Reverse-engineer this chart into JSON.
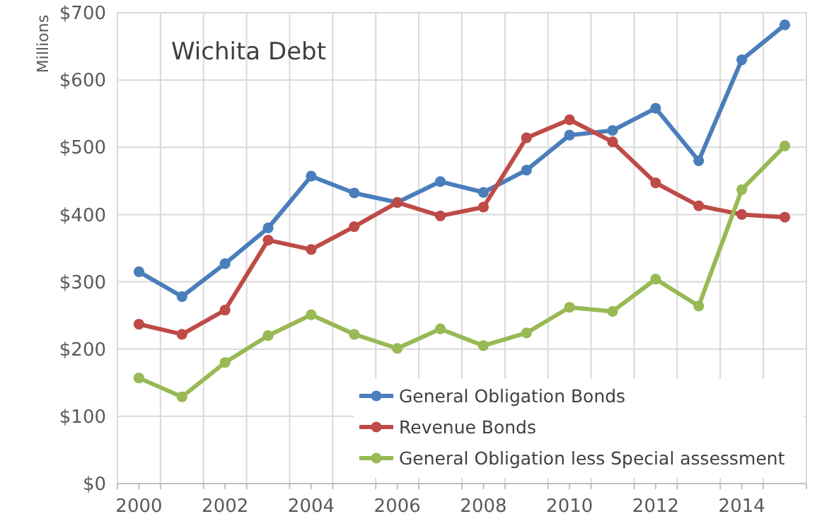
{
  "chart_data": {
    "type": "line",
    "title": "Wichita Debt",
    "ylabel": "Millions",
    "x": [
      2000,
      2001,
      2002,
      2003,
      2004,
      2005,
      2006,
      2007,
      2008,
      2009,
      2010,
      2011,
      2012,
      2013,
      2014,
      2015
    ],
    "xlim": [
      1999.5,
      2015.5
    ],
    "xticks": [
      {
        "value": 1999.5,
        "label": null
      },
      2000,
      {
        "value": 2000.5,
        "label": null
      },
      {
        "value": 2001.5,
        "label": null
      },
      2002,
      {
        "value": 2002.5,
        "label": null
      },
      {
        "value": 2003.5,
        "label": null
      },
      2004,
      {
        "value": 2004.5,
        "label": null
      },
      {
        "value": 2005.5,
        "label": null
      },
      2006,
      {
        "value": 2006.5,
        "label": null
      },
      {
        "value": 2007.5,
        "label": null
      },
      2008,
      {
        "value": 2008.5,
        "label": null
      },
      {
        "value": 2009.5,
        "label": null
      },
      2010,
      {
        "value": 2010.5,
        "label": null
      },
      {
        "value": 2011.5,
        "label": null
      },
      2012,
      {
        "value": 2012.5,
        "label": null
      },
      {
        "value": 2013.5,
        "label": null
      },
      2014,
      {
        "value": 2014.5,
        "label": null
      },
      {
        "value": 2015.5,
        "label": null
      }
    ],
    "ylim": [
      0,
      700
    ],
    "yticks": [
      {
        "value": 0,
        "label": "$0"
      },
      {
        "value": 100,
        "label": "$100"
      },
      {
        "value": 200,
        "label": "$200"
      },
      {
        "value": 300,
        "label": "$300"
      },
      {
        "value": 400,
        "label": "$400"
      },
      {
        "value": 500,
        "label": "$500"
      },
      {
        "value": 600,
        "label": "$600"
      },
      {
        "value": 700,
        "label": "$700"
      }
    ],
    "grid": true,
    "legend": "bottom right",
    "marker": "circle",
    "line_style": "solid",
    "series": [
      {
        "name": "General Obligation Bonds",
        "color": "#4a7ebb",
        "values": [
          315,
          278,
          327,
          380,
          457,
          432,
          418,
          449,
          433,
          466,
          518,
          525,
          558,
          480,
          630,
          682
        ]
      },
      {
        "name": "Revenue Bonds",
        "color": "#be4b48",
        "values": [
          237,
          222,
          258,
          362,
          348,
          382,
          418,
          398,
          411,
          514,
          541,
          508,
          447,
          413,
          400,
          396
        ]
      },
      {
        "name": "General Obligation less Special assessment",
        "color": "#98b954",
        "values": [
          157,
          129,
          180,
          220,
          251,
          222,
          201,
          230,
          205,
          224,
          262,
          256,
          304,
          264,
          437,
          502
        ]
      }
    ]
  }
}
